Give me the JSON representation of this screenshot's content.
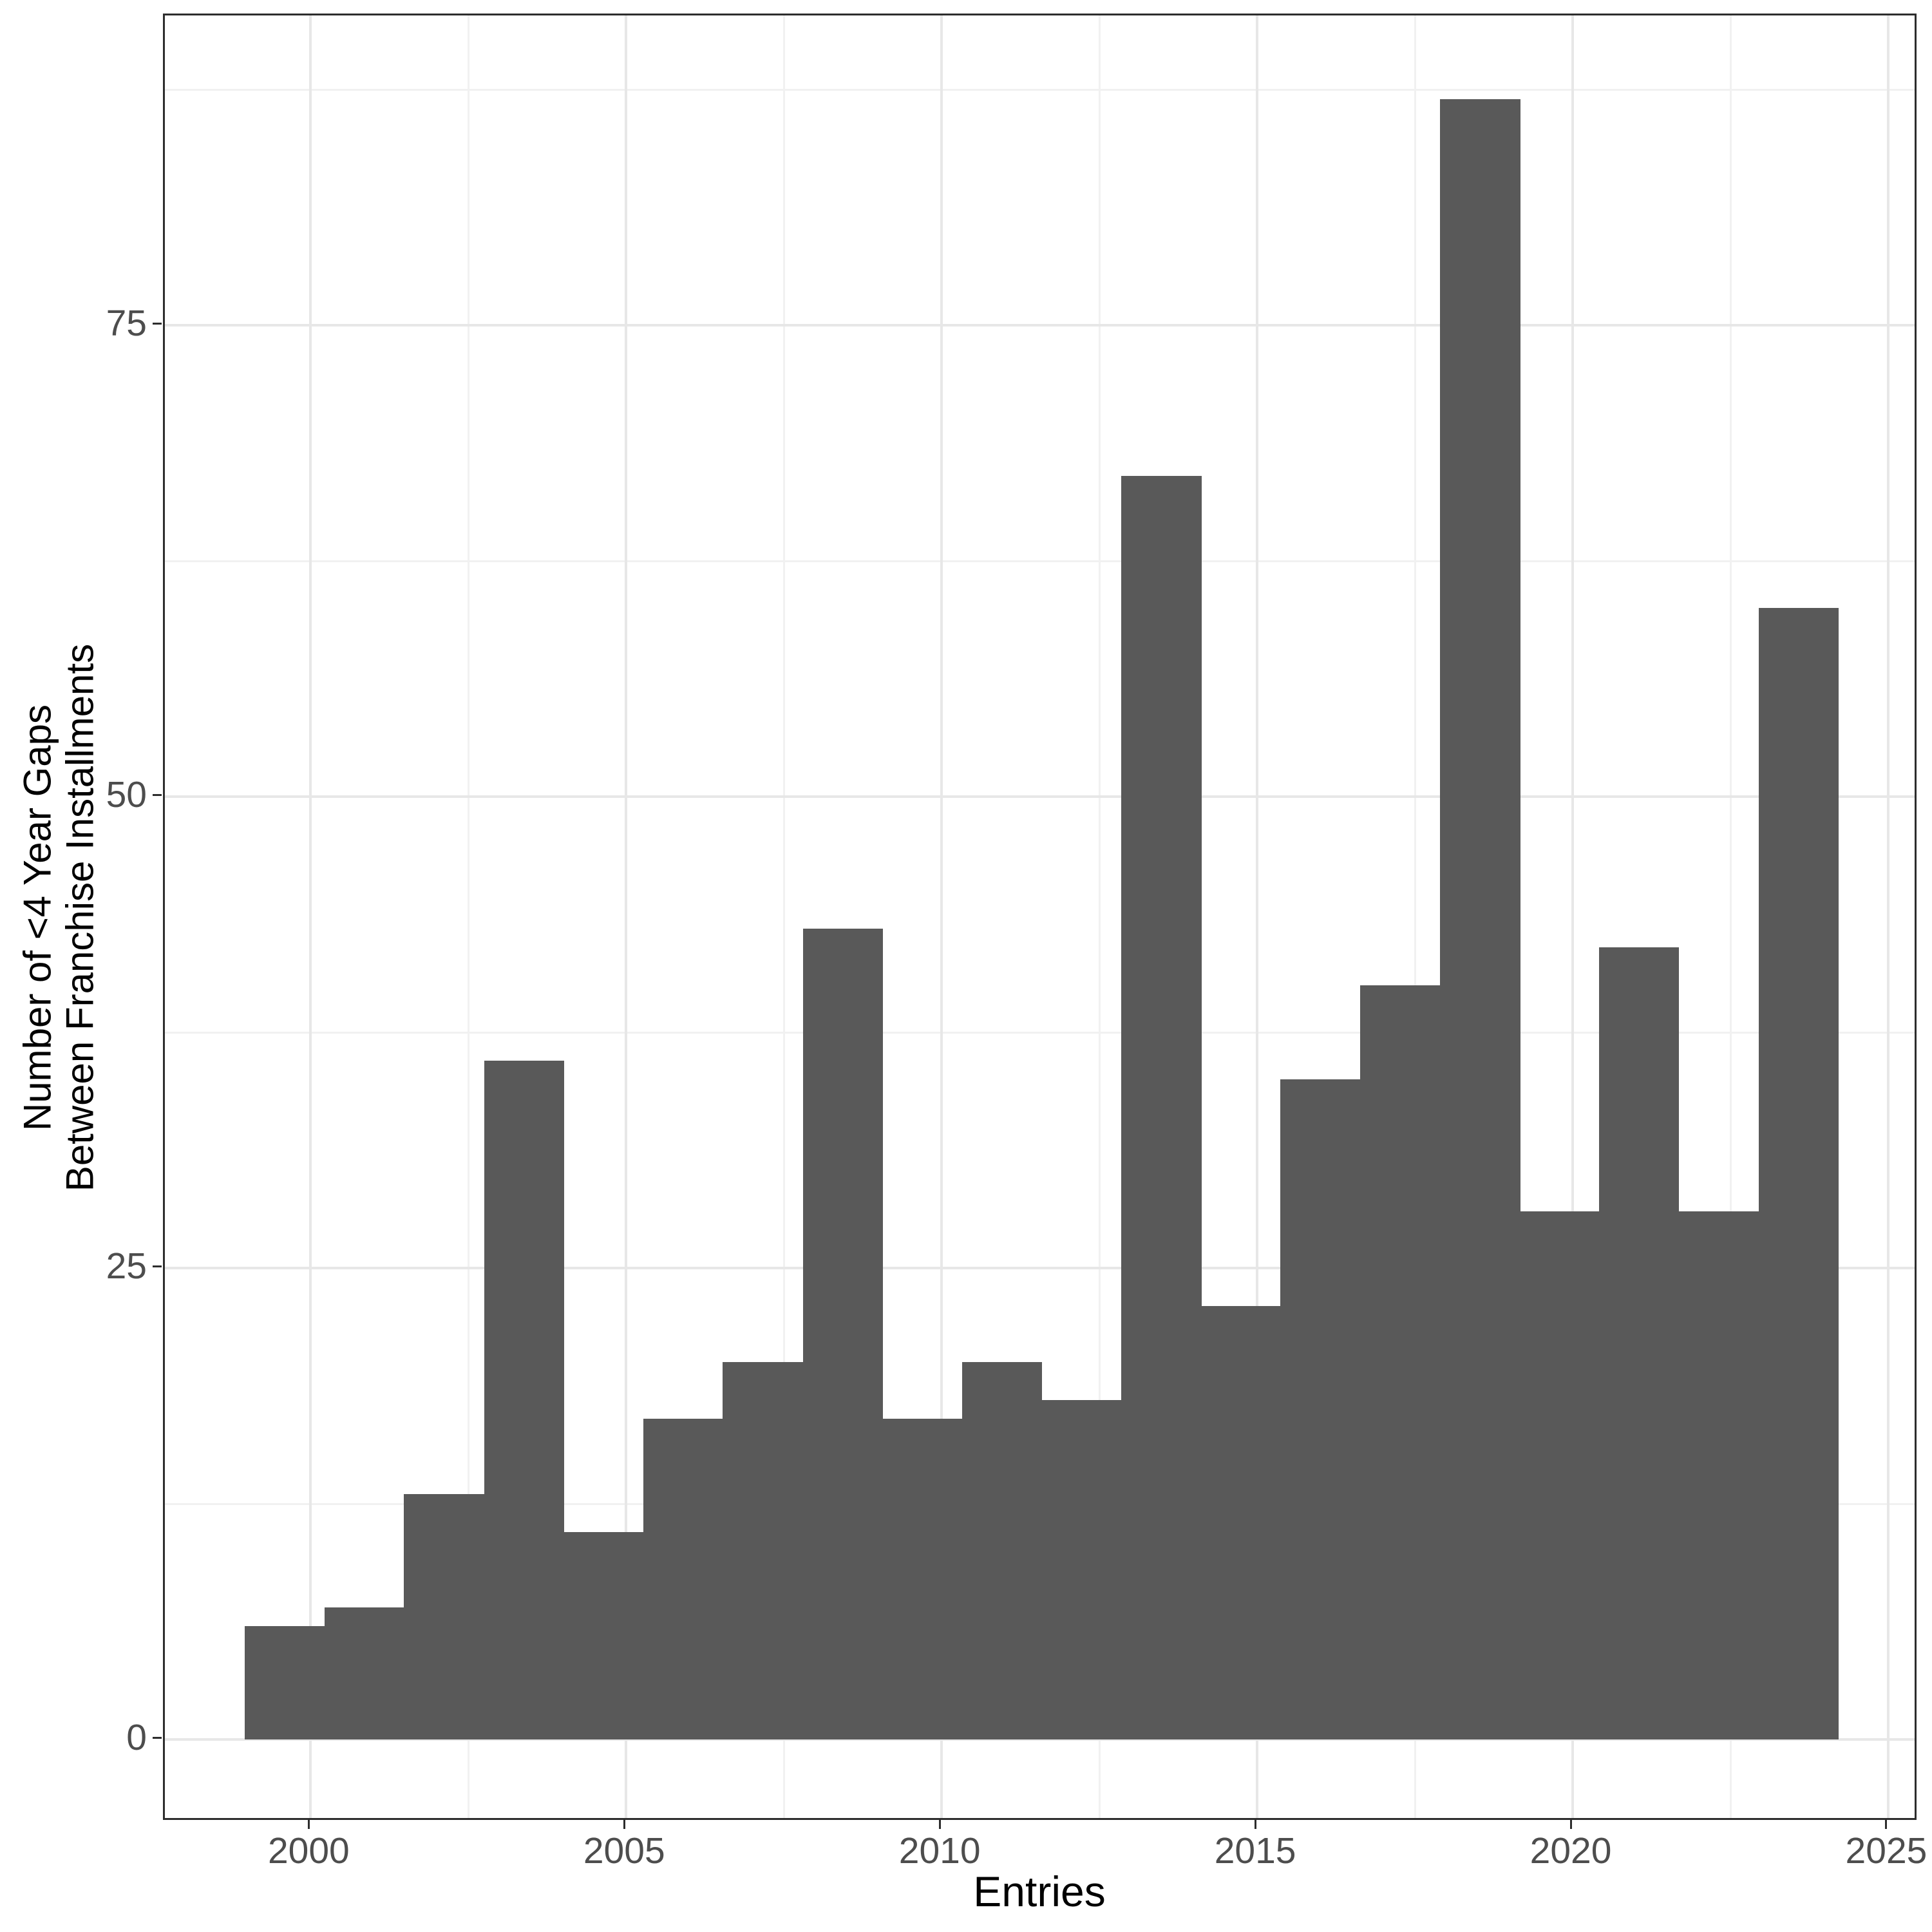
{
  "chart_data": {
    "type": "bar",
    "subtype": "histogram",
    "title": "",
    "xlabel": "Entries",
    "ylabel_line1": "Number of <4 Year Gaps",
    "ylabel_line2": "Between Franchise Installments",
    "x_domain": [
      1997.69,
      2025.48
    ],
    "y_domain": [
      -4.37,
      91.43
    ],
    "x_ticks": [
      2000,
      2005,
      2010,
      2015,
      2020,
      2025
    ],
    "y_ticks": [
      0,
      25,
      50,
      75
    ],
    "x_minor_gridlines": [
      2002.5,
      2007.5,
      2012.5,
      2017.5,
      2022.5
    ],
    "y_minor_gridlines": [
      12.5,
      37.5,
      62.5,
      87.5
    ],
    "bin_edges": [
      1998.96,
      2000.22,
      2001.48,
      2002.75,
      2004.01,
      2005.27,
      2006.53,
      2007.8,
      2009.06,
      2010.32,
      2011.58,
      2012.85,
      2014.11,
      2015.37,
      2016.63,
      2017.9,
      2019.16,
      2020.42,
      2021.68,
      2022.95,
      2024.21
    ],
    "counts": [
      6,
      7,
      13,
      36,
      11,
      17,
      20,
      43,
      17,
      20,
      18,
      67,
      23,
      35,
      40,
      87,
      28,
      42,
      28,
      60
    ],
    "legend": null,
    "grid": "on",
    "colors": {
      "bar_fill": "#595959",
      "panel_background": "#ffffff",
      "panel_border": "#2d2d2d",
      "grid_major": "#e7e7e7",
      "grid_minor": "#f1f1f1",
      "tick_label": "#4d4d4d",
      "axis_title": "#000000"
    }
  }
}
